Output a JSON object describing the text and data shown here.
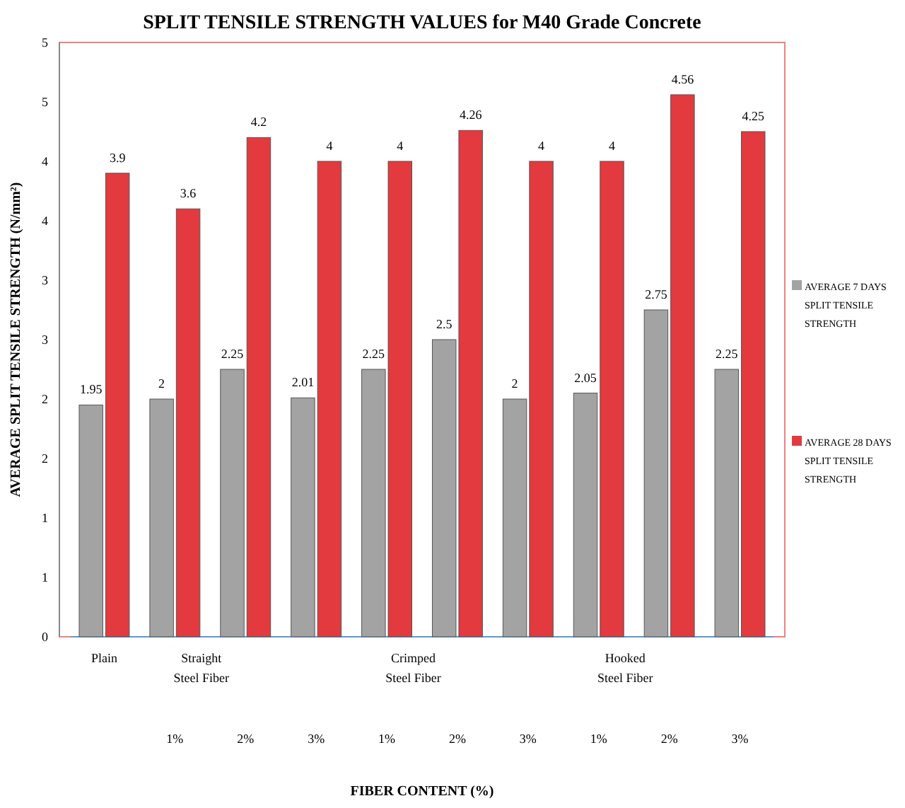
{
  "chart_data": {
    "type": "bar",
    "title": "SPLIT TENSILE STRENGTH VALUES for M40 Grade Concrete",
    "xlabel": "FIBER CONTENT (%)",
    "ylabel": "AVERAGE SPLIT TENSILE STRENGTH (N/mm²)",
    "categories": [
      "Plain",
      "1%",
      "2%",
      "3%",
      "1%",
      "2%",
      "3%",
      "1%",
      "2%",
      "3%"
    ],
    "series": [
      {
        "name": "AVERAGE  7 DAYS SPLIT TENSILE STRENGTH",
        "color": "#a3a3a3",
        "values": [
          1.95,
          2,
          2.25,
          2.01,
          2.25,
          2.5,
          2,
          2.05,
          2.75,
          2.25
        ]
      },
      {
        "name": "AVERAGE  28 DAYS SPLIT TENSILE STRENGTH",
        "color": "#e23a3f",
        "values": [
          3.9,
          3.6,
          4.2,
          4,
          4,
          4.26,
          4,
          4,
          4.56,
          4.25
        ]
      }
    ],
    "ylim": [
      0,
      5
    ],
    "yticks": [
      0,
      {
        "value": 0.5,
        "label": "1"
      },
      1,
      {
        "value": 1.5,
        "label": "2"
      },
      2,
      {
        "value": 2.5,
        "label": "3"
      },
      3,
      {
        "value": 3.5,
        "label": "4"
      },
      4,
      {
        "value": 4.5,
        "label": "5"
      },
      5
    ],
    "annotations": [
      "Straight Steel Fiber",
      "Crimped Steel Fiber",
      "Hooked Steel Fiber"
    ],
    "data_labels": true,
    "legend": "right",
    "grid": false
  }
}
